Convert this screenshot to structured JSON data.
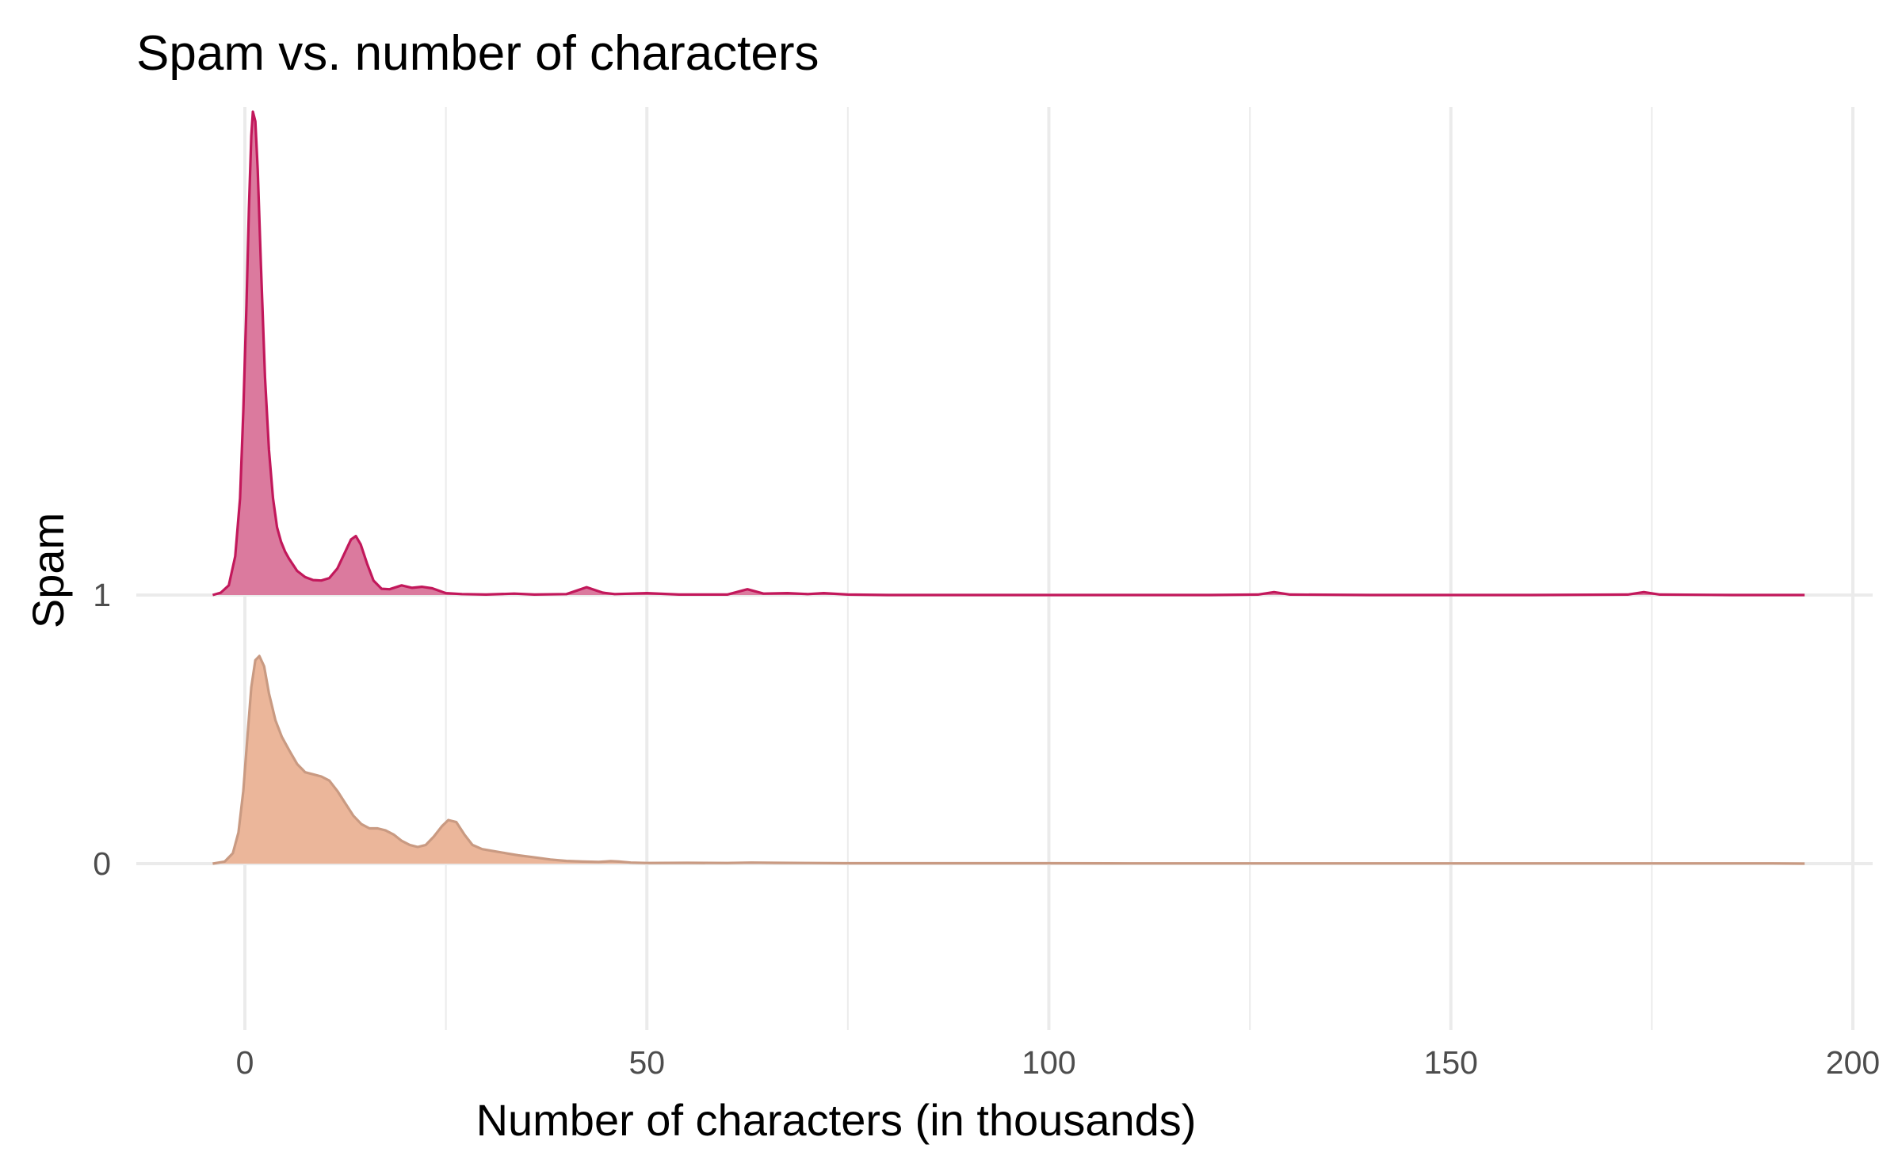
{
  "chart_data": {
    "type": "area",
    "subtype": "ridgeline-density",
    "title": "Spam vs. number of characters",
    "xlabel": "Number of characters (in thousands)",
    "ylabel": "Spam",
    "xlim": [
      -14,
      202
    ],
    "x_ticks": [
      0,
      50,
      100,
      150,
      200
    ],
    "categories": [
      "0",
      "1"
    ],
    "grid": true,
    "legend": "none",
    "series": [
      {
        "name": "0",
        "color": "#C99A82",
        "fill": "#EBB69A",
        "points": [
          [
            -4,
            0
          ],
          [
            -2.5,
            0.01
          ],
          [
            -1.5,
            0.05
          ],
          [
            -0.8,
            0.15
          ],
          [
            -0.2,
            0.35
          ],
          [
            0.3,
            0.6
          ],
          [
            0.8,
            0.85
          ],
          [
            1.3,
            0.98
          ],
          [
            1.8,
            1.0
          ],
          [
            2.4,
            0.95
          ],
          [
            3.0,
            0.82
          ],
          [
            3.8,
            0.69
          ],
          [
            4.6,
            0.61
          ],
          [
            5.6,
            0.54
          ],
          [
            6.5,
            0.48
          ],
          [
            7.5,
            0.44
          ],
          [
            8.5,
            0.43
          ],
          [
            9.5,
            0.42
          ],
          [
            10.5,
            0.4
          ],
          [
            11.5,
            0.35
          ],
          [
            12.5,
            0.29
          ],
          [
            13.5,
            0.23
          ],
          [
            14.5,
            0.19
          ],
          [
            15.5,
            0.17
          ],
          [
            16.5,
            0.17
          ],
          [
            17.5,
            0.16
          ],
          [
            18.5,
            0.14
          ],
          [
            19.5,
            0.11
          ],
          [
            20.5,
            0.09
          ],
          [
            21.5,
            0.08
          ],
          [
            22.5,
            0.09
          ],
          [
            23.5,
            0.13
          ],
          [
            24.5,
            0.18
          ],
          [
            25.3,
            0.21
          ],
          [
            26.3,
            0.2
          ],
          [
            27.3,
            0.14
          ],
          [
            28.3,
            0.09
          ],
          [
            29.5,
            0.07
          ],
          [
            31,
            0.06
          ],
          [
            32.5,
            0.05
          ],
          [
            34,
            0.04
          ],
          [
            36,
            0.03
          ],
          [
            38,
            0.02
          ],
          [
            40,
            0.013
          ],
          [
            42,
            0.01
          ],
          [
            44,
            0.008
          ],
          [
            45.5,
            0.012
          ],
          [
            46.5,
            0.01
          ],
          [
            48,
            0.005
          ],
          [
            50,
            0.003
          ],
          [
            55,
            0.004
          ],
          [
            60,
            0.003
          ],
          [
            63,
            0.005
          ],
          [
            66,
            0.004
          ],
          [
            70,
            0.003
          ],
          [
            75,
            0.002
          ],
          [
            80,
            0.002
          ],
          [
            85,
            0.002
          ],
          [
            90,
            0.002
          ],
          [
            95,
            0.002
          ],
          [
            100,
            0.002
          ],
          [
            110,
            0.001
          ],
          [
            120,
            0.001
          ],
          [
            130,
            0.001
          ],
          [
            140,
            0.001
          ],
          [
            150,
            0.001
          ],
          [
            160,
            0.001
          ],
          [
            170,
            0.001
          ],
          [
            180,
            0.001
          ],
          [
            190,
            0.001
          ],
          [
            194,
            0
          ]
        ]
      },
      {
        "name": "1",
        "color": "#C2185B",
        "fill": "#DB7A9E",
        "points": [
          [
            -4,
            0
          ],
          [
            -3,
            0.005
          ],
          [
            -2,
            0.02
          ],
          [
            -1.2,
            0.08
          ],
          [
            -0.6,
            0.2
          ],
          [
            -0.2,
            0.38
          ],
          [
            0.2,
            0.6
          ],
          [
            0.5,
            0.8
          ],
          [
            0.8,
            0.95
          ],
          [
            1.0,
            1.0
          ],
          [
            1.3,
            0.98
          ],
          [
            1.6,
            0.88
          ],
          [
            2.0,
            0.68
          ],
          [
            2.5,
            0.45
          ],
          [
            3.0,
            0.3
          ],
          [
            3.5,
            0.2
          ],
          [
            4.0,
            0.14
          ],
          [
            4.5,
            0.11
          ],
          [
            5.0,
            0.09
          ],
          [
            5.5,
            0.075
          ],
          [
            6.5,
            0.05
          ],
          [
            7.5,
            0.037
          ],
          [
            8.5,
            0.031
          ],
          [
            9.5,
            0.03
          ],
          [
            10.5,
            0.035
          ],
          [
            11.5,
            0.055
          ],
          [
            12.5,
            0.09
          ],
          [
            13.2,
            0.115
          ],
          [
            13.8,
            0.122
          ],
          [
            14.4,
            0.105
          ],
          [
            15.2,
            0.065
          ],
          [
            16.0,
            0.03
          ],
          [
            17.0,
            0.013
          ],
          [
            18.0,
            0.012
          ],
          [
            19.5,
            0.02
          ],
          [
            20.8,
            0.015
          ],
          [
            22.0,
            0.017
          ],
          [
            23.3,
            0.014
          ],
          [
            25.0,
            0.004
          ],
          [
            27.0,
            0.002
          ],
          [
            30.0,
            0.001
          ],
          [
            33.5,
            0.003
          ],
          [
            36.0,
            0.001
          ],
          [
            40.0,
            0.002
          ],
          [
            42.5,
            0.016
          ],
          [
            44.5,
            0.005
          ],
          [
            46.0,
            0.002
          ],
          [
            50.0,
            0.004
          ],
          [
            54.0,
            0.001
          ],
          [
            60.0,
            0.001
          ],
          [
            62.5,
            0.012
          ],
          [
            64.5,
            0.003
          ],
          [
            67.5,
            0.004
          ],
          [
            70.0,
            0.002
          ],
          [
            72.0,
            0.004
          ],
          [
            75.0,
            0.001
          ],
          [
            80.0,
            0
          ],
          [
            90.0,
            0
          ],
          [
            100.0,
            0
          ],
          [
            110.0,
            0
          ],
          [
            120.0,
            0
          ],
          [
            126.0,
            0.001
          ],
          [
            128.0,
            0.006
          ],
          [
            130.0,
            0.001
          ],
          [
            140.0,
            0
          ],
          [
            150.0,
            0
          ],
          [
            160.0,
            0
          ],
          [
            172.0,
            0.001
          ],
          [
            174.0,
            0.006
          ],
          [
            176.0,
            0.001
          ],
          [
            185.0,
            0
          ],
          [
            194.0,
            0
          ]
        ]
      }
    ]
  }
}
